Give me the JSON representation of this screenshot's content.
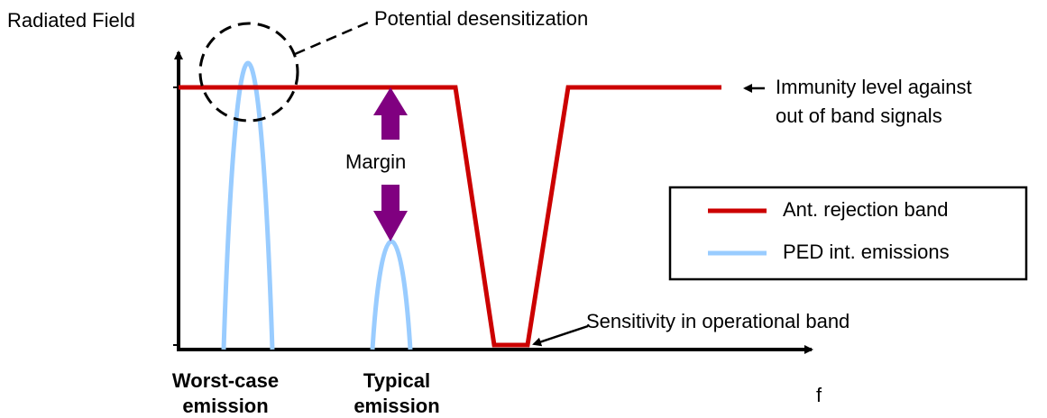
{
  "y_axis_label": "Radiated Field",
  "x_axis_label": "f",
  "annotations": {
    "desensitization": "Potential desensitization",
    "immunity": [
      "Immunity level against",
      "out of band signals"
    ],
    "margin": "Margin",
    "sensitivity": "Sensitivity in operational band"
  },
  "legend": [
    {
      "label": "Ant. rejection band",
      "color": "#cc0000"
    },
    {
      "label": "PED int. emissions",
      "color": "#99ccff"
    }
  ],
  "x_labels": [
    [
      "Worst-case",
      "emission"
    ],
    [
      "Typical",
      "emission"
    ]
  ]
}
